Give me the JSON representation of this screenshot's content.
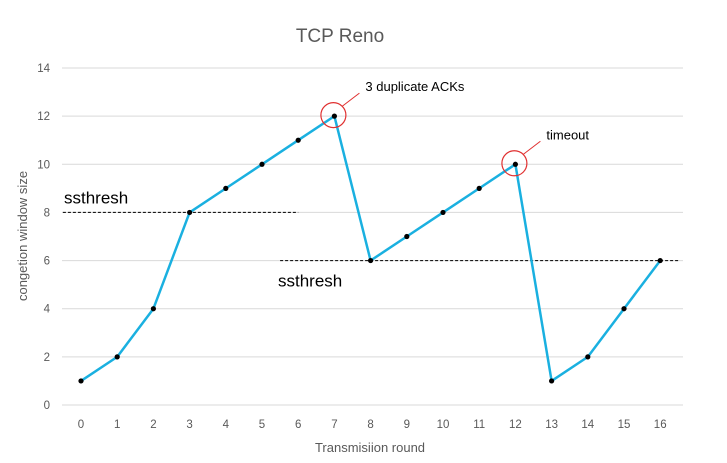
{
  "chart_data": {
    "type": "line",
    "title": "TCP Reno",
    "xlabel": "Transmisiion round",
    "ylabel": "congetion window size",
    "categories": [
      "0",
      "1",
      "2",
      "3",
      "4",
      "5",
      "6",
      "7",
      "8",
      "9",
      "10",
      "11",
      "12",
      "13",
      "14",
      "15",
      "16"
    ],
    "series": [
      {
        "values": [
          1,
          2,
          4,
          8,
          9,
          10,
          11,
          12,
          6,
          7,
          8,
          9,
          10,
          1,
          2,
          4,
          6
        ],
        "color": "#1ab0e0"
      }
    ],
    "ylim": [
      0,
      14
    ],
    "yticks": [
      "0",
      "2",
      "4",
      "6",
      "8",
      "10",
      "12",
      "14"
    ],
    "grid": true,
    "legend": "none",
    "thresholds": [
      {
        "label": "ssthresh",
        "value": 8,
        "x_from": -0.5,
        "x_to": 6
      },
      {
        "label": "ssthresh",
        "value": 6,
        "x_from": 5.5,
        "x_to": 16.5
      }
    ],
    "annotations": [
      {
        "label": "3 duplicate ACKs",
        "x": 7,
        "y": 12
      },
      {
        "label": "timeout",
        "x": 12,
        "y": 10
      }
    ]
  },
  "colors": {
    "line": "#1ab0e0",
    "marker": "#000000",
    "grid": "#d9d9d9",
    "circle": "#e03030"
  }
}
